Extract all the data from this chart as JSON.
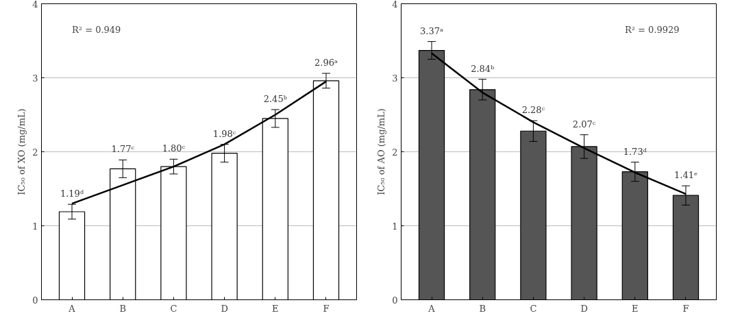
{
  "chart_data": [
    {
      "type": "bar",
      "ylabel": "IC₅₀ of XO (mg/mL)",
      "categories": [
        "A",
        "B",
        "C",
        "D",
        "E",
        "F"
      ],
      "ylim": [
        0,
        4
      ],
      "yticks": [
        0,
        1,
        2,
        3,
        4
      ],
      "grid": "y",
      "annotations": [
        "R² = 0.949"
      ],
      "series": [
        {
          "color": "#ffffff",
          "values": [
            1.19,
            1.77,
            1.8,
            1.98,
            2.45,
            2.96
          ],
          "errors": [
            0.1,
            0.12,
            0.1,
            0.12,
            0.12,
            0.1
          ],
          "value_labels": [
            "1.19ᵈ",
            "1.77ᶜ",
            "1.80ᶜ",
            "1.98ᶜ",
            "2.45ᵇ",
            "2.96ᵃ"
          ]
        },
        {
          "type": "line",
          "color": "#000000",
          "values": [
            1.3,
            1.55,
            1.8,
            2.1,
            2.5,
            2.95
          ]
        }
      ]
    },
    {
      "type": "bar",
      "ylabel": "IC₅₀ of AO (mg/mL)",
      "categories": [
        "A",
        "B",
        "C",
        "D",
        "E",
        "F"
      ],
      "ylim": [
        0,
        4
      ],
      "yticks": [
        0,
        1,
        2,
        3,
        4
      ],
      "grid": "y",
      "annotations": [
        "R² = 0.9929"
      ],
      "series": [
        {
          "color": "#555555",
          "values": [
            3.37,
            2.84,
            2.28,
            2.07,
            1.73,
            1.41
          ],
          "errors": [
            0.12,
            0.14,
            0.14,
            0.16,
            0.13,
            0.13
          ],
          "value_labels": [
            "3.37ᵃ",
            "2.84ᵇ",
            "2.28ᶜ",
            "2.07ᶜ",
            "1.73ᵈ",
            "1.41ᵉ"
          ]
        },
        {
          "type": "line",
          "color": "#000000",
          "values": [
            3.33,
            2.8,
            2.4,
            2.05,
            1.72,
            1.43
          ]
        }
      ]
    }
  ]
}
